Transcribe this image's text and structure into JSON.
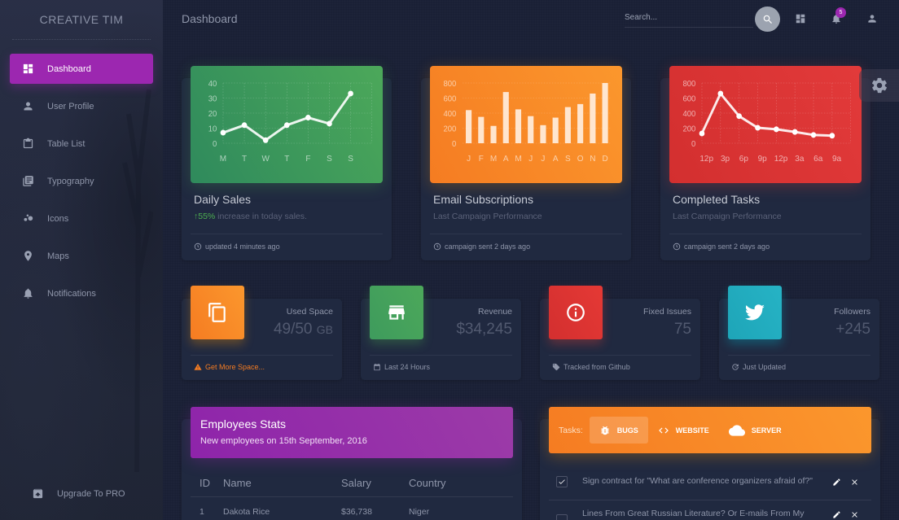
{
  "sidebar": {
    "brand": "CREATIVE TIM",
    "items": [
      {
        "label": "Dashboard",
        "icon": "dashboard-icon",
        "active": true
      },
      {
        "label": "User Profile",
        "icon": "person-icon"
      },
      {
        "label": "Table List",
        "icon": "clipboard-icon"
      },
      {
        "label": "Typography",
        "icon": "library-books-icon"
      },
      {
        "label": "Icons",
        "icon": "bubble-chart-icon"
      },
      {
        "label": "Maps",
        "icon": "location-pin-icon"
      },
      {
        "label": "Notifications",
        "icon": "bell-icon"
      }
    ],
    "upgrade": {
      "label": "Upgrade To PRO",
      "icon": "unarchive-icon"
    }
  },
  "topbar": {
    "title": "Dashboard",
    "search_placeholder": "Search...",
    "notification_count": "5"
  },
  "chart_cards": [
    {
      "title": "Daily Sales",
      "sub_highlight": "55%",
      "sub_rest": " increase in today sales.",
      "footer": "updated 4 minutes ago",
      "color": "#4caf50"
    },
    {
      "title": "Email Subscriptions",
      "sub": "Last Campaign Performance",
      "footer": "campaign sent 2 days ago",
      "color": "#ff9800"
    },
    {
      "title": "Completed Tasks",
      "sub": "Last Campaign Performance",
      "footer": "campaign sent 2 days ago",
      "color": "#f44336"
    }
  ],
  "chart_data": [
    {
      "type": "line",
      "title": "Daily Sales",
      "categories": [
        "M",
        "T",
        "W",
        "T",
        "F",
        "S",
        "S"
      ],
      "values": [
        7,
        12,
        2,
        12,
        17,
        13,
        33
      ],
      "yticks": [
        "0",
        "10",
        "20",
        "30",
        "40"
      ],
      "ylim": [
        0,
        40
      ],
      "grid": true
    },
    {
      "type": "bar",
      "title": "Email Subscriptions",
      "categories": [
        "J",
        "F",
        "M",
        "A",
        "M",
        "J",
        "J",
        "A",
        "S",
        "O",
        "N",
        "D"
      ],
      "values": [
        440,
        350,
        230,
        680,
        450,
        360,
        240,
        340,
        480,
        520,
        660,
        800
      ],
      "yticks": [
        "0",
        "200",
        "400",
        "600",
        "800"
      ],
      "ylim": [
        0,
        800
      ],
      "grid": true
    },
    {
      "type": "line",
      "title": "Completed Tasks",
      "categories": [
        "12p",
        "3p",
        "6p",
        "9p",
        "12p",
        "3a",
        "6a",
        "9a"
      ],
      "values": [
        130,
        660,
        360,
        205,
        185,
        150,
        110,
        100
      ],
      "yticks": [
        "0",
        "200",
        "400",
        "600",
        "800"
      ],
      "ylim": [
        0,
        800
      ],
      "grid": true
    }
  ],
  "stats": [
    {
      "label": "Used Space",
      "value": "49/50",
      "unit": "GB",
      "footer": "Get More Space...",
      "icon": "content-copy-icon",
      "footer_icon": "warning-icon",
      "color": "#ff9800"
    },
    {
      "label": "Revenue",
      "value": "$34,245",
      "footer": "Last 24 Hours",
      "icon": "store-icon",
      "footer_icon": "calendar-icon",
      "color": "#4caf50"
    },
    {
      "label": "Fixed Issues",
      "value": "75",
      "footer": "Tracked from Github",
      "icon": "info-icon",
      "footer_icon": "tag-icon",
      "color": "#f44336"
    },
    {
      "label": "Followers",
      "value": "+245",
      "footer": "Just Updated",
      "icon": "twitter-icon",
      "footer_icon": "update-icon",
      "color": "#00bcd4"
    }
  ],
  "employees": {
    "title": "Employees Stats",
    "subtitle": "New employees on 15th September, 2016",
    "columns": [
      "ID",
      "Name",
      "Salary",
      "Country"
    ],
    "rows": [
      [
        "1",
        "Dakota Rice",
        "$36,738",
        "Niger"
      ]
    ]
  },
  "tasks": {
    "label": "Tasks:",
    "tabs": [
      {
        "label": "BUGS",
        "icon": "bug-icon",
        "active": true
      },
      {
        "label": "WEBSITE",
        "icon": "code-icon"
      },
      {
        "label": "SERVER",
        "icon": "cloud-icon"
      }
    ],
    "items": [
      {
        "text": "Sign contract for \"What are conference organizers afraid of?\"",
        "checked": true
      },
      {
        "text": "Lines From Great Russian Literature? Or E-mails From My",
        "checked": false
      }
    ]
  }
}
